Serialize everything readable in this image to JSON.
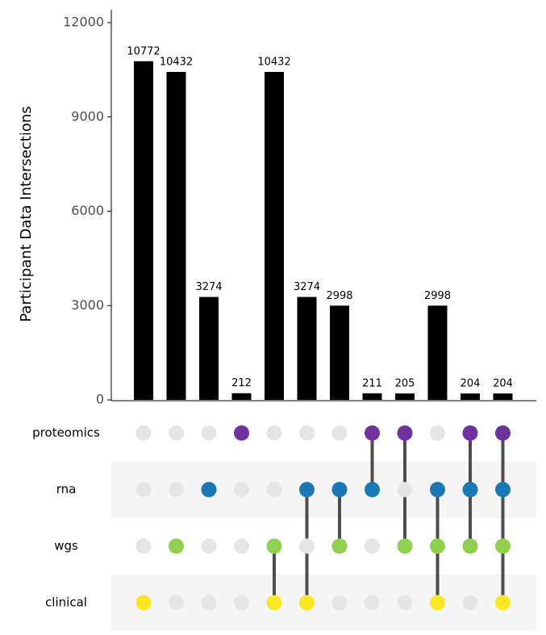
{
  "chart_data": {
    "type": "upset",
    "ylabel": "Participant Data Intersections",
    "values": [
      10772,
      10432,
      3274,
      212,
      10432,
      3274,
      2998,
      211,
      205,
      2998,
      204,
      204
    ],
    "color": "#000000",
    "ylim": [
      0,
      12000
    ],
    "yticks": [
      0,
      3000,
      6000,
      9000,
      12000
    ],
    "sets": [
      {
        "name": "proteomics",
        "color": "#7030a0",
        "members": [
          0,
          0,
          0,
          1,
          0,
          0,
          0,
          1,
          1,
          0,
          1,
          1
        ]
      },
      {
        "name": "rna",
        "color": "#1a78b4",
        "members": [
          0,
          0,
          1,
          0,
          0,
          1,
          1,
          1,
          0,
          1,
          1,
          1
        ]
      },
      {
        "name": "wgs",
        "color": "#8fd14f",
        "members": [
          0,
          1,
          0,
          0,
          1,
          0,
          1,
          0,
          1,
          1,
          1,
          1
        ]
      },
      {
        "name": "clinical",
        "color": "#fde725",
        "members": [
          1,
          0,
          0,
          0,
          1,
          1,
          0,
          0,
          0,
          1,
          0,
          1
        ]
      }
    ]
  }
}
